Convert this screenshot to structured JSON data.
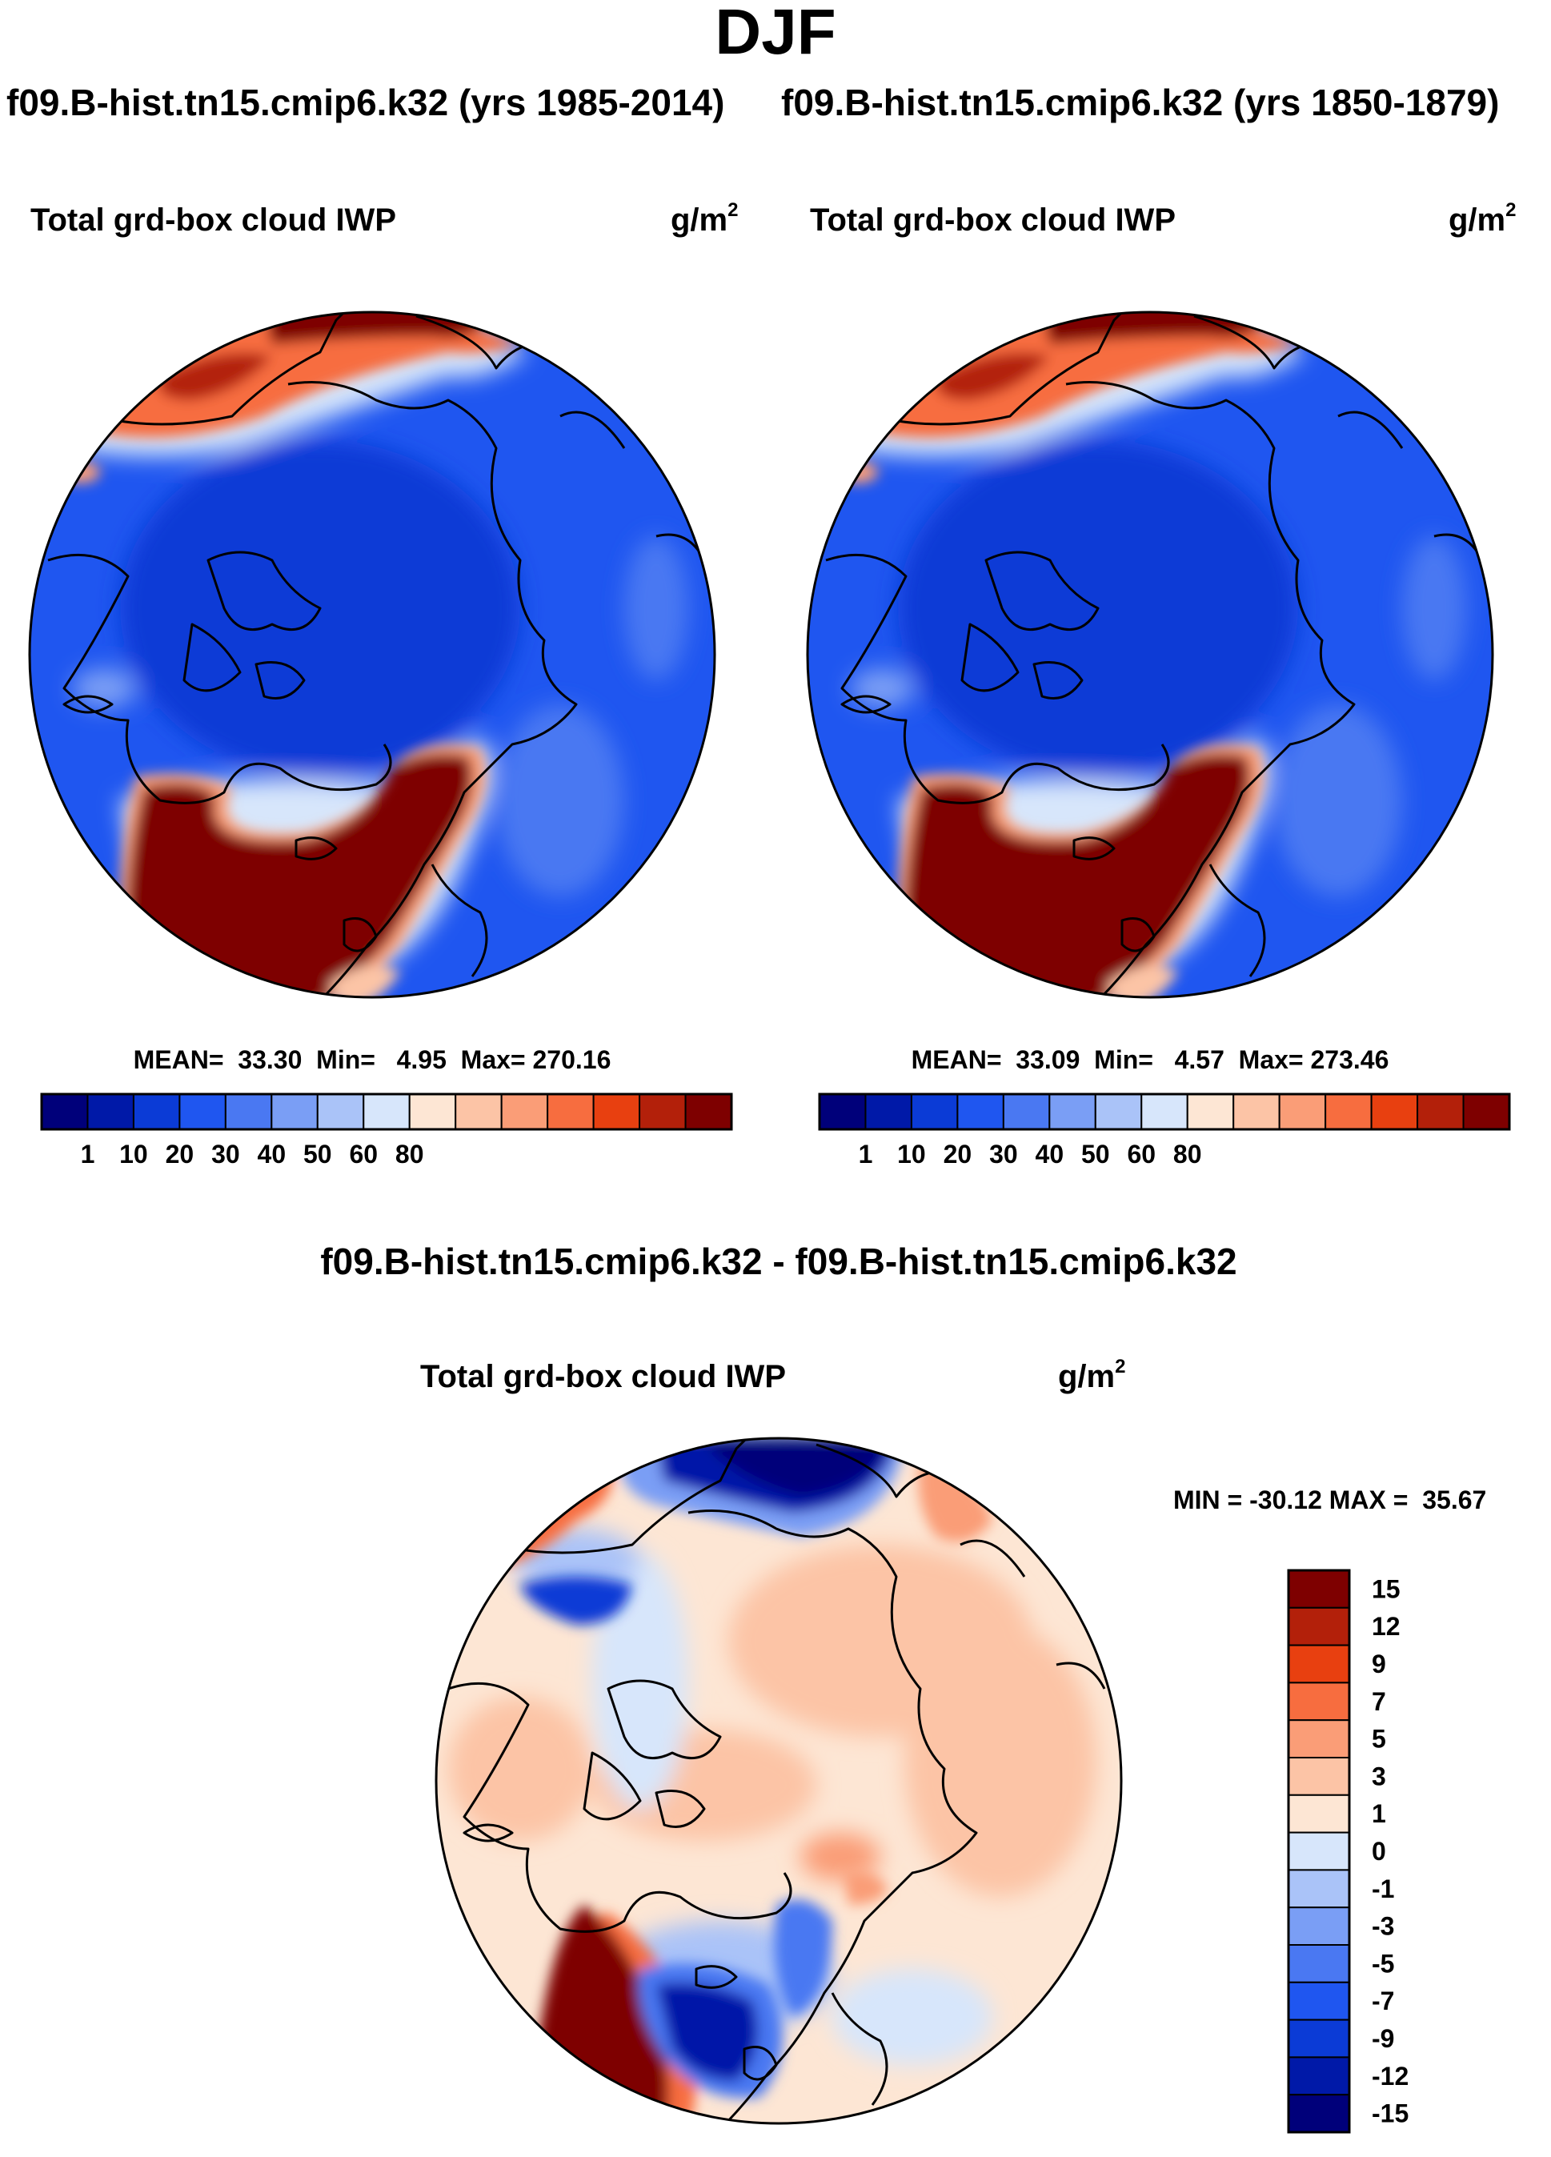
{
  "figure": {
    "season": "DJF",
    "header_left": "f09.B-hist.tn15.cmip6.k32 (yrs 1985-2014)",
    "header_right": "f09.B-hist.tn15.cmip6.k32 (yrs 1850-1879)"
  },
  "panels": [
    {
      "variable": "Total grd-box cloud IWP",
      "units_base": "g/m",
      "units_exp": "2",
      "stats": "MEAN=  33.30  Min=   4.95  Max= 270.16",
      "colorbar_labels": [
        "1",
        "10",
        "20",
        "30",
        "40",
        "50",
        "60",
        "80"
      ]
    },
    {
      "variable": "Total grd-box cloud IWP",
      "units_base": "g/m",
      "units_exp": "2",
      "stats": "MEAN=  33.09  Min=   4.57  Max= 273.46",
      "colorbar_labels": [
        "1",
        "10",
        "20",
        "30",
        "40",
        "50",
        "60",
        "80"
      ]
    }
  ],
  "difference": {
    "title": "f09.B-hist.tn15.cmip6.k32 - f09.B-hist.tn15.cmip6.k32",
    "variable": "Total grd-box cloud IWP",
    "units_base": "g/m",
    "units_exp": "2",
    "minmax": "MIN = -30.12 MAX =  35.67",
    "colorbar_labels": [
      "15",
      "12",
      "9",
      "7",
      "5",
      "3",
      "1",
      "0",
      "-1",
      "-3",
      "-5",
      "-7",
      "-9",
      "-12",
      "-15"
    ]
  },
  "colors": {
    "abs_scale": [
      "#00007a",
      "#0019a8",
      "#0b3bd6",
      "#1f56f0",
      "#4a78f2",
      "#7a9ef5",
      "#aac3f8",
      "#d7e6fb",
      "#fde6d4",
      "#fcc4a6",
      "#fa9d77",
      "#f76d3f",
      "#e84010",
      "#b3200a",
      "#7e0000"
    ],
    "diff_scale": [
      "#7e0000",
      "#b3200a",
      "#e84010",
      "#f76d3f",
      "#fa9d77",
      "#fcc4a6",
      "#fde6d4",
      "#d7e6fb",
      "#aac3f8",
      "#7a9ef5",
      "#4a78f2",
      "#1f56f0",
      "#0b3bd6",
      "#0019a8",
      "#00007a"
    ],
    "land_outline": "#000000"
  }
}
